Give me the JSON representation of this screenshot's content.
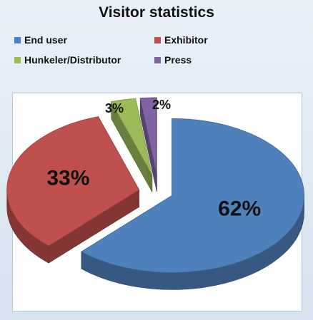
{
  "chart_data": {
    "type": "pie",
    "title": "Visitor statistics",
    "style": "3d-exploded",
    "legend_position": "top",
    "series": [
      {
        "name": "End user",
        "value": 62,
        "label": "62%",
        "color": "#4f81bd"
      },
      {
        "name": "Exhibitor",
        "value": 33,
        "label": "33%",
        "color": "#c0504d"
      },
      {
        "name": "Hunkeler/Distributor",
        "value": 3,
        "label": "3%",
        "color": "#9bbb59"
      },
      {
        "name": "Press",
        "value": 2,
        "label": "2%",
        "color": "#8064a2"
      }
    ]
  }
}
